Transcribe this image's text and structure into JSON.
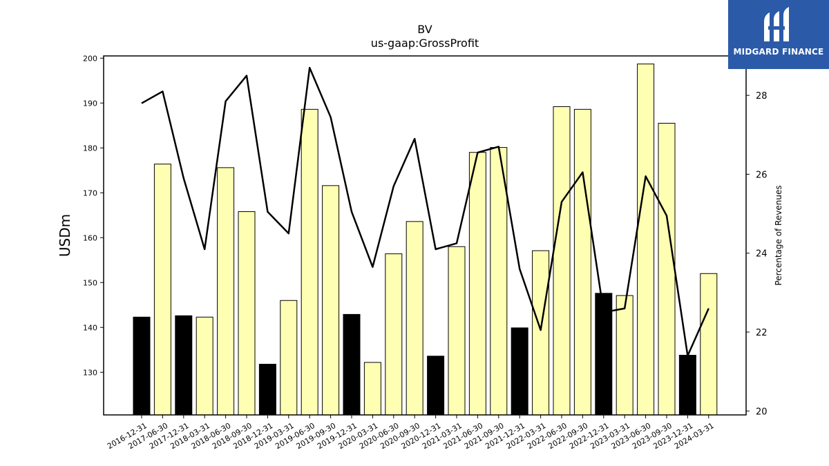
{
  "chart_data": {
    "type": "bar+line",
    "title": "BV",
    "subtitle": "us-gaap:GrossProfit",
    "ylabel": "USDm",
    "y2label": "Percentage of Revenues",
    "ylim": [
      120.5,
      200.5
    ],
    "y2lim": [
      19.9,
      29.0
    ],
    "yticks": [
      130,
      140,
      150,
      160,
      170,
      180,
      190,
      200
    ],
    "y2ticks": [
      20,
      22,
      24,
      26,
      28
    ],
    "categories": [
      "2016-12-31",
      "2017-06-30",
      "2017-12-31",
      "2018-03-31",
      "2018-06-30",
      "2018-09-30",
      "2018-12-31",
      "2019-03-31",
      "2019-06-30",
      "2019-09-30",
      "2019-12-31",
      "2020-03-31",
      "2020-06-30",
      "2020-09-30",
      "2020-12-31",
      "2021-03-31",
      "2021-06-30",
      "2021-09-30",
      "2021-12-31",
      "2022-03-31",
      "2022-06-30",
      "2022-09-30",
      "2022-12-31",
      "2023-03-31",
      "2023-06-30",
      "2023-09-30",
      "2023-12-31",
      "2024-03-31"
    ],
    "series": [
      {
        "kind": "bar",
        "values": [
          142.3,
          176.4,
          142.6,
          142.3,
          175.6,
          165.8,
          131.8,
          146.0,
          188.6,
          171.6,
          142.9,
          132.2,
          156.4,
          163.6,
          133.6,
          158.0,
          179.0,
          180.1,
          139.9,
          157.1,
          189.2,
          188.6,
          147.6,
          147.1,
          198.7,
          185.5,
          133.8,
          152.0
        ],
        "annual_flags": [
          true,
          false,
          true,
          false,
          false,
          false,
          true,
          false,
          false,
          false,
          true,
          false,
          false,
          false,
          true,
          false,
          false,
          false,
          true,
          false,
          false,
          false,
          true,
          false,
          false,
          false,
          true,
          false
        ],
        "color_annual": "#000000",
        "color_quarterly": "#ffffb3"
      },
      {
        "kind": "line",
        "axis": "right",
        "values": [
          27.8,
          28.1,
          25.9,
          24.1,
          27.85,
          28.5,
          25.05,
          24.5,
          28.7,
          27.45,
          25.05,
          23.65,
          25.7,
          26.9,
          24.1,
          24.25,
          26.55,
          26.7,
          23.6,
          22.05,
          25.3,
          26.05,
          22.5,
          22.6,
          25.95,
          24.95,
          21.4,
          22.6
        ],
        "color": "#000000"
      }
    ],
    "grid": false,
    "legend": "none"
  },
  "logo": {
    "text": "MIDGARD FINANCE",
    "background": "#2b5aa8"
  }
}
